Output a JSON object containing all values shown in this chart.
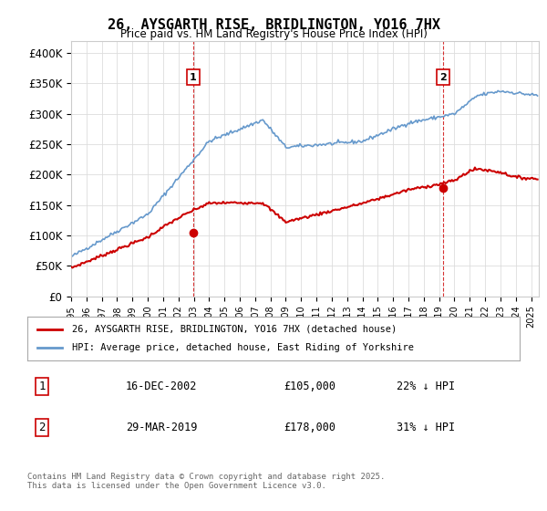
{
  "title": "26, AYSGARTH RISE, BRIDLINGTON, YO16 7HX",
  "subtitle": "Price paid vs. HM Land Registry's House Price Index (HPI)",
  "legend_line1": "26, AYSGARTH RISE, BRIDLINGTON, YO16 7HX (detached house)",
  "legend_line2": "HPI: Average price, detached house, East Riding of Yorkshire",
  "annotation1": {
    "num": "1",
    "date": "16-DEC-2002",
    "price": "£105,000",
    "pct": "22% ↓ HPI",
    "x": 2002.96
  },
  "annotation2": {
    "num": "2",
    "date": "29-MAR-2019",
    "price": "£178,000",
    "pct": "31% ↓ HPI",
    "x": 2019.24
  },
  "footer": "Contains HM Land Registry data © Crown copyright and database right 2025.\nThis data is licensed under the Open Government Licence v3.0.",
  "price_color": "#cc0000",
  "hpi_color": "#6699cc",
  "vline_color": "#cc0000",
  "background_color": "#ffffff",
  "grid_color": "#dddddd",
  "ylim": [
    0,
    420000
  ],
  "yticks": [
    0,
    50000,
    100000,
    150000,
    200000,
    250000,
    300000,
    350000,
    400000
  ],
  "ylabel_format": "£{0}K",
  "xmin": 1995,
  "xmax": 2025.5
}
